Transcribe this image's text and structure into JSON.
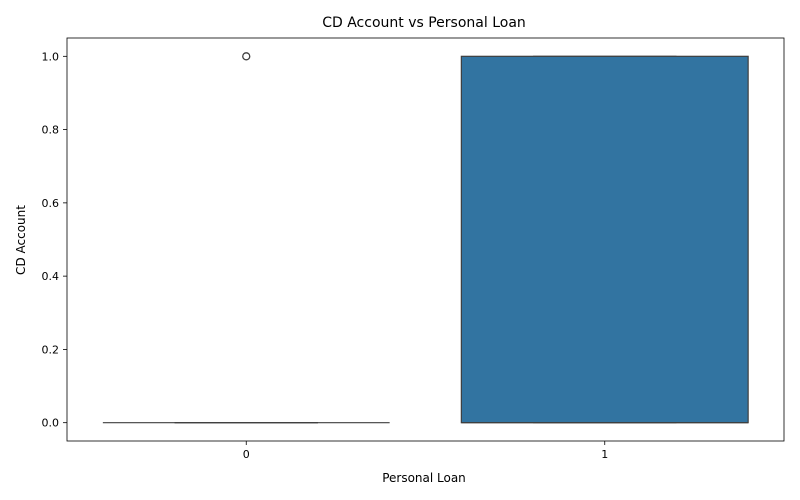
{
  "chart_data": {
    "type": "box",
    "title": "CD Account vs Personal Loan",
    "xlabel": "Personal Loan",
    "ylabel": "CD Account",
    "categories": [
      "0",
      "1"
    ],
    "ylim": [
      -0.05,
      1.05
    ],
    "yticks": [
      0.0,
      0.2,
      0.4,
      0.6,
      0.8,
      1.0
    ],
    "ytick_labels": [
      "0.0",
      "0.2",
      "0.4",
      "0.6",
      "0.8",
      "1.0"
    ],
    "boxes": [
      {
        "category": "0",
        "q1": 0.0,
        "median": 0.0,
        "q3": 0.0,
        "whisker_low": 0.0,
        "whisker_high": 0.0,
        "outliers": [
          1.0
        ]
      },
      {
        "category": "1",
        "q1": 0.0,
        "median": 0.0,
        "q3": 1.0,
        "whisker_low": 0.0,
        "whisker_high": 1.0,
        "outliers": []
      }
    ],
    "box_color": "#3274a1",
    "edge_color": "#3f3f3f",
    "grid": false
  }
}
